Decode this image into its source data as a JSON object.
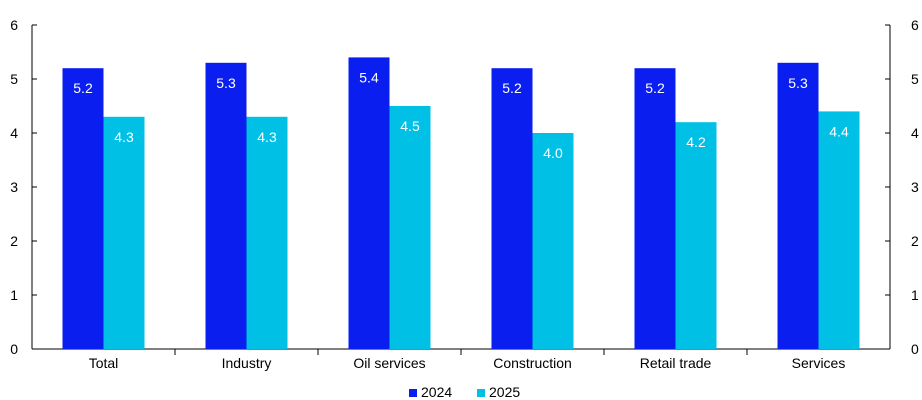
{
  "chart_data": {
    "type": "bar",
    "categories": [
      "Total",
      "Industry",
      "Oil services",
      "Construction",
      "Retail trade",
      "Services"
    ],
    "series": [
      {
        "name": "2024",
        "values": [
          5.2,
          5.3,
          5.4,
          5.2,
          5.2,
          5.3
        ],
        "color": "#0a1ef0"
      },
      {
        "name": "2025",
        "values": [
          4.3,
          4.3,
          4.5,
          4.0,
          4.2,
          4.4
        ],
        "color": "#00c0e6"
      }
    ],
    "ylim": [
      0,
      6
    ],
    "yticks": [
      0,
      1,
      2,
      3,
      4,
      5,
      6
    ],
    "secondary_yaxis": true,
    "data_labels": true,
    "grid": false,
    "legend_position": "bottom-center"
  }
}
